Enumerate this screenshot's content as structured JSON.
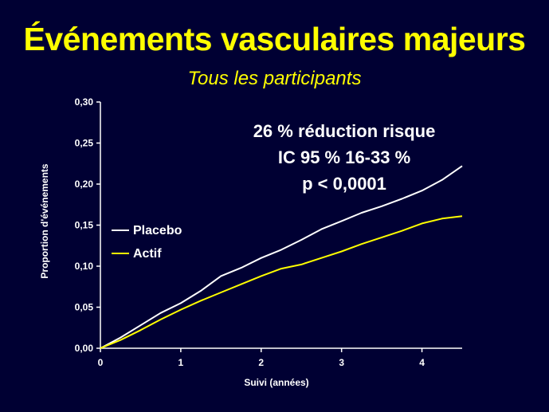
{
  "slide": {
    "title": "Événements vasculaires majeurs",
    "subtitle": "Tous les participants",
    "annotation": [
      "26 % réduction risque",
      "IC 95 %  16-33 %",
      "p < 0,0001"
    ]
  },
  "colors": {
    "background": "#000033",
    "title": "#ffff00",
    "axis": "#ffffff",
    "placebo": "#ffffff",
    "actif": "#ffff00"
  },
  "chart_data": {
    "type": "line",
    "xlabel": "Suivi (années)",
    "ylabel": "Proportion d'événements",
    "xlim": [
      0,
      4.5
    ],
    "ylim": [
      0,
      0.3
    ],
    "x_ticks": [
      0,
      1,
      2,
      3,
      4
    ],
    "x_tick_labels": [
      "0",
      "1",
      "2",
      "3",
      "4"
    ],
    "y_ticks": [
      0,
      0.05,
      0.1,
      0.15,
      0.2,
      0.25,
      0.3
    ],
    "y_tick_labels": [
      "0,00",
      "0,05",
      "0,10",
      "0,15",
      "0,20",
      "0,25",
      "0,30"
    ],
    "legend_position": "left-center",
    "series": [
      {
        "name": "Placebo",
        "color": "#ffffff",
        "x": [
          0,
          0.25,
          0.5,
          0.75,
          1.0,
          1.25,
          1.5,
          1.75,
          2.0,
          2.25,
          2.5,
          2.75,
          3.0,
          3.25,
          3.5,
          3.75,
          4.0,
          4.25,
          4.5
        ],
        "y": [
          0,
          0.013,
          0.028,
          0.043,
          0.055,
          0.07,
          0.088,
          0.098,
          0.11,
          0.12,
          0.132,
          0.145,
          0.155,
          0.165,
          0.173,
          0.182,
          0.192,
          0.205,
          0.222
        ]
      },
      {
        "name": "Actif",
        "color": "#ffff00",
        "x": [
          0,
          0.25,
          0.5,
          0.75,
          1.0,
          1.25,
          1.5,
          1.75,
          2.0,
          2.25,
          2.5,
          2.75,
          3.0,
          3.25,
          3.5,
          3.75,
          4.0,
          4.25,
          4.5
        ],
        "y": [
          0,
          0.01,
          0.022,
          0.035,
          0.047,
          0.058,
          0.068,
          0.078,
          0.088,
          0.097,
          0.102,
          0.11,
          0.118,
          0.127,
          0.135,
          0.143,
          0.152,
          0.158,
          0.161
        ]
      }
    ]
  }
}
